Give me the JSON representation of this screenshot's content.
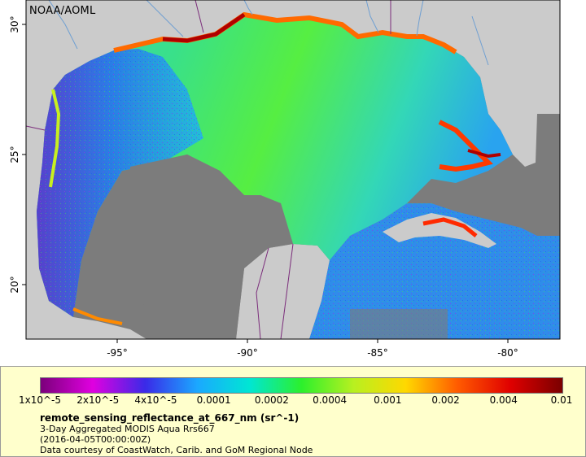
{
  "map": {
    "organization": "NOAA/AOML",
    "x_ticks": [
      "-95°",
      "-90°",
      "-85°",
      "-80°"
    ],
    "y_ticks": [
      "30°",
      "25°",
      "20°"
    ],
    "colors": {
      "land": "#cbcbcb",
      "no_data": "#7c7c7c",
      "rivers": "#6f9fd2",
      "borders": "#7b2d7b"
    }
  },
  "legend": {
    "colorbar_ticks": [
      "1x10^-5",
      "2x10^-5",
      "4x10^-5",
      "0.0001",
      "0.0002",
      "0.0004",
      "0.001",
      "0.002",
      "0.004",
      "0.01"
    ],
    "colorbar_stops": [
      "#7b007b",
      "#e000e0",
      "#3a2ae8",
      "#1ba8ff",
      "#00e6d4",
      "#2cf02c",
      "#b8f020",
      "#ffd800",
      "#ff5a00",
      "#e00000",
      "#7a0000"
    ],
    "variable": "remote_sensing_reflectance_at_667_nm (sr^-1)",
    "product": "3-Day Aggregated MODIS Aqua Rrs667",
    "date": "(2016-04-05T00:00:00Z)",
    "credit": "Data courtesy of CoastWatch, Carib. and GoM Regional Node"
  }
}
